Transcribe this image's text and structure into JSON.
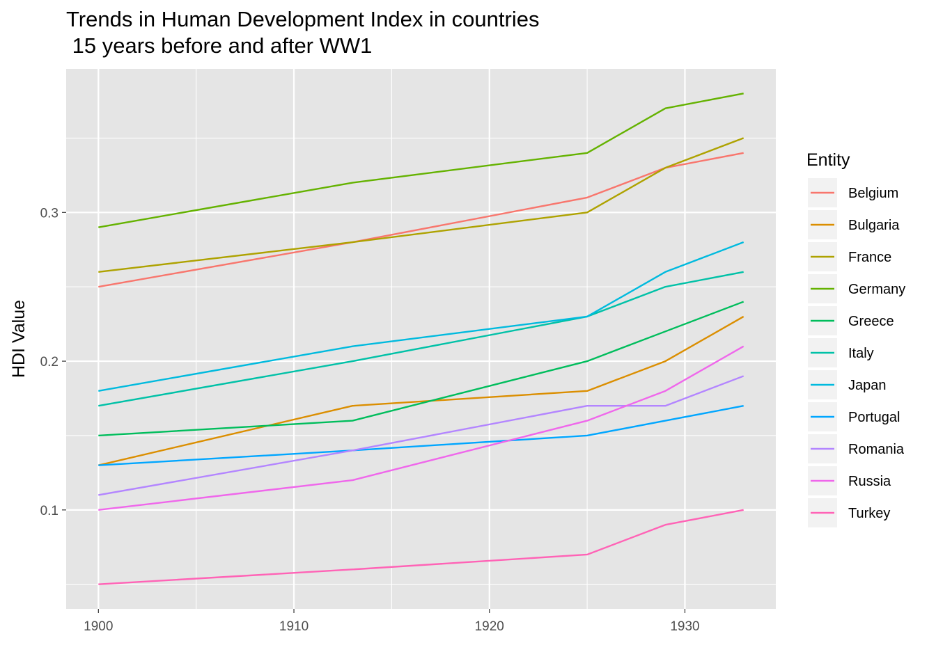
{
  "chart_data": {
    "type": "line",
    "title": "Trends in Human Development Index in countries\n 15 years before and after WW1",
    "title_lines": [
      "Trends in Human Development Index in countries",
      " 15 years before and after WW1"
    ],
    "xlabel": "",
    "ylabel": "HDI Value",
    "xlim": [
      1898.35,
      1934.65
    ],
    "ylim": [
      0.0335,
      0.3965
    ],
    "x_ticks": [
      1900,
      1910,
      1920,
      1930
    ],
    "x_tick_labels": [
      "1900",
      "1910",
      "1920",
      "1930"
    ],
    "y_ticks": [
      0.1,
      0.2,
      0.3
    ],
    "y_tick_labels": [
      "0.1",
      "0.2",
      "0.3"
    ],
    "x_minor_ticks": [
      1905,
      1915,
      1925
    ],
    "y_minor_ticks": [
      0.05,
      0.15,
      0.25,
      0.35
    ],
    "grid": true,
    "panel_background": "#e5e5e5",
    "grid_color": "#ffffff",
    "legend": {
      "title": "Entity",
      "position": "right"
    },
    "x": [
      1900,
      1913,
      1925,
      1929,
      1933
    ],
    "series": [
      {
        "name": "Belgium",
        "color": "#F8766D",
        "values": [
          0.25,
          0.28,
          0.31,
          0.33,
          0.34
        ]
      },
      {
        "name": "Bulgaria",
        "color": "#DB8E00",
        "values": [
          0.13,
          0.17,
          0.18,
          0.2,
          0.23
        ]
      },
      {
        "name": "France",
        "color": "#AEA200",
        "values": [
          0.26,
          0.28,
          0.3,
          0.33,
          0.35
        ]
      },
      {
        "name": "Germany",
        "color": "#64B200",
        "values": [
          0.29,
          0.32,
          0.34,
          0.37,
          0.38
        ]
      },
      {
        "name": "Greece",
        "color": "#00BD5C",
        "values": [
          0.15,
          0.16,
          0.2,
          0.22,
          0.24
        ]
      },
      {
        "name": "Italy",
        "color": "#00C1A7",
        "values": [
          0.17,
          0.2,
          0.23,
          0.25,
          0.26
        ]
      },
      {
        "name": "Japan",
        "color": "#00BADE",
        "values": [
          0.18,
          0.21,
          0.23,
          0.26,
          0.28
        ]
      },
      {
        "name": "Portugal",
        "color": "#00A6FF",
        "values": [
          0.13,
          0.14,
          0.15,
          0.16,
          0.17
        ]
      },
      {
        "name": "Romania",
        "color": "#B385FF",
        "values": [
          0.11,
          0.14,
          0.17,
          0.17,
          0.19
        ]
      },
      {
        "name": "Russia",
        "color": "#EF67EB",
        "values": [
          0.1,
          0.12,
          0.16,
          0.18,
          0.21
        ]
      },
      {
        "name": "Turkey",
        "color": "#FF63B6",
        "values": [
          0.05,
          0.06,
          0.07,
          0.09,
          0.1
        ]
      }
    ]
  }
}
